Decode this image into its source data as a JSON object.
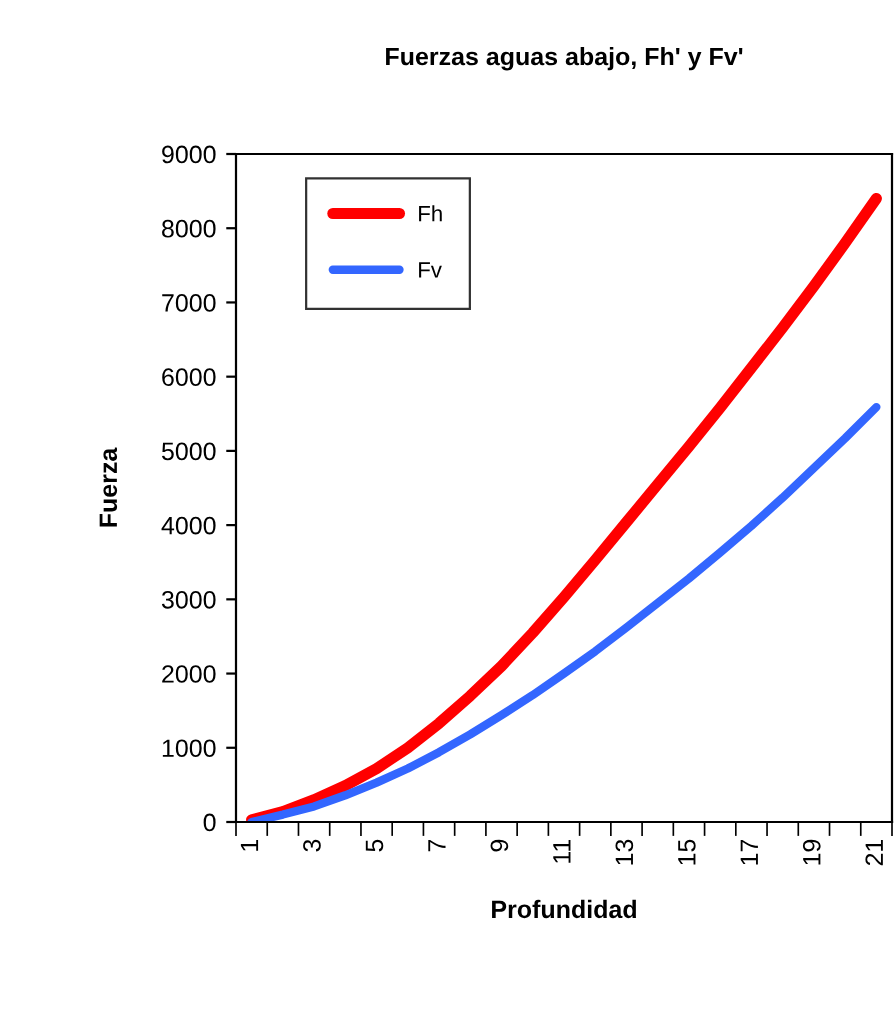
{
  "chart_data": {
    "type": "line",
    "title": "Fuerzas aguas abajo, Fh' y Fv'",
    "xlabel": "Profundidad",
    "ylabel": "Fuerza",
    "categories": [
      "1",
      null,
      "3",
      null,
      "5",
      null,
      "7",
      null,
      "9",
      null,
      "11",
      null,
      "13",
      null,
      "15",
      null,
      "17",
      null,
      "19",
      null,
      "21"
    ],
    "series": [
      {
        "name": "Fh",
        "color": "#ff0000",
        "values": [
          30,
          140,
          300,
          490,
          720,
          1000,
          1330,
          1700,
          2100,
          2550,
          3030,
          3530,
          4040,
          4550,
          5060,
          5580,
          6120,
          6660,
          7220,
          7800,
          8400
        ]
      },
      {
        "name": "Fv",
        "color": "#3366ff",
        "values": [
          0,
          100,
          210,
          360,
          530,
          720,
          940,
          1180,
          1440,
          1710,
          2000,
          2300,
          2620,
          2950,
          3280,
          3630,
          3990,
          4370,
          4770,
          5170,
          5590
        ]
      }
    ],
    "ylim": [
      0,
      9000
    ],
    "yticks": [
      0,
      1000,
      2000,
      3000,
      4000,
      5000,
      6000,
      7000,
      8000,
      9000
    ],
    "grid": false,
    "legend": "top left",
    "marker": "none",
    "line_style": "solid"
  }
}
